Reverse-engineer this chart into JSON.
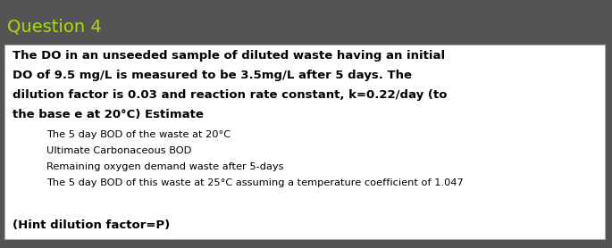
{
  "title": "Question 4",
  "title_color": "#AADD00",
  "background_color": "#545454",
  "box_color": "#ffffff",
  "box_text_color": "#000000",
  "title_fontsize": 14,
  "body_fontsize": 9.5,
  "bullet_fontsize": 8.2,
  "hint_fontsize": 9.5,
  "body_text_lines": [
    "The DO in an unseeded sample of diluted waste having an initial",
    "DO of 9.5 mg/L is measured to be 3.5mg/L after 5 days. The",
    "dilution factor is 0.03 and reaction rate constant, k=0.22/day (to",
    "the base e at 20°C) Estimate"
  ],
  "bullet_lines": [
    "The 5 day BOD of the waste at 20°C",
    "Ultimate Carbonaceous BOD",
    "Remaining oxygen demand waste after 5-days",
    "The 5 day BOD of this waste at 25°C assuming a temperature coefficient of 1.047"
  ],
  "hint_text": "(Hint dilution factor=P)"
}
